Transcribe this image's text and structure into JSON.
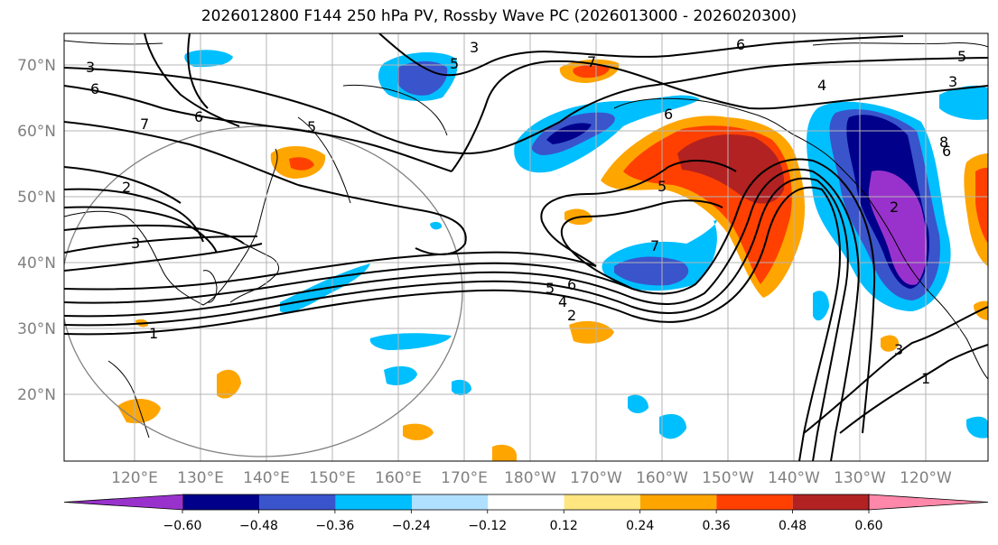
{
  "title": "2026012800 F144 250 hPa PV, Rossby Wave PC (2026013000 - 2026020300)",
  "lat_labels": [
    "70°N",
    "60°N",
    "50°N",
    "40°N",
    "30°N",
    "20°N"
  ],
  "lon_labels": [
    "120°E",
    "130°E",
    "140°E",
    "150°E",
    "160°E",
    "170°E",
    "180°W",
    "170°W",
    "160°W",
    "150°W",
    "140°W",
    "130°W",
    "120°W"
  ],
  "colorbar": {
    "ticks": [
      "−0.60",
      "−0.48",
      "−0.36",
      "−0.24",
      "−0.12",
      "0.12",
      "0.24",
      "0.36",
      "0.48",
      "0.60"
    ],
    "colors": [
      "#9932cc",
      "#00008b",
      "#3a54cc",
      "#00bfff",
      "#b0e0ff",
      "#ffffff",
      "#ffe680",
      "#ffa500",
      "#ff4000",
      "#b22222",
      "#ff88aa"
    ]
  },
  "contour_labels": [
    "3",
    "6",
    "2",
    "7",
    "6",
    "5",
    "3",
    "7",
    "6",
    "5",
    "4",
    "6",
    "6",
    "5",
    "4",
    "2",
    "7",
    "5",
    "3",
    "1",
    "3",
    "1",
    "2",
    "6",
    "5",
    "3",
    "8"
  ]
}
